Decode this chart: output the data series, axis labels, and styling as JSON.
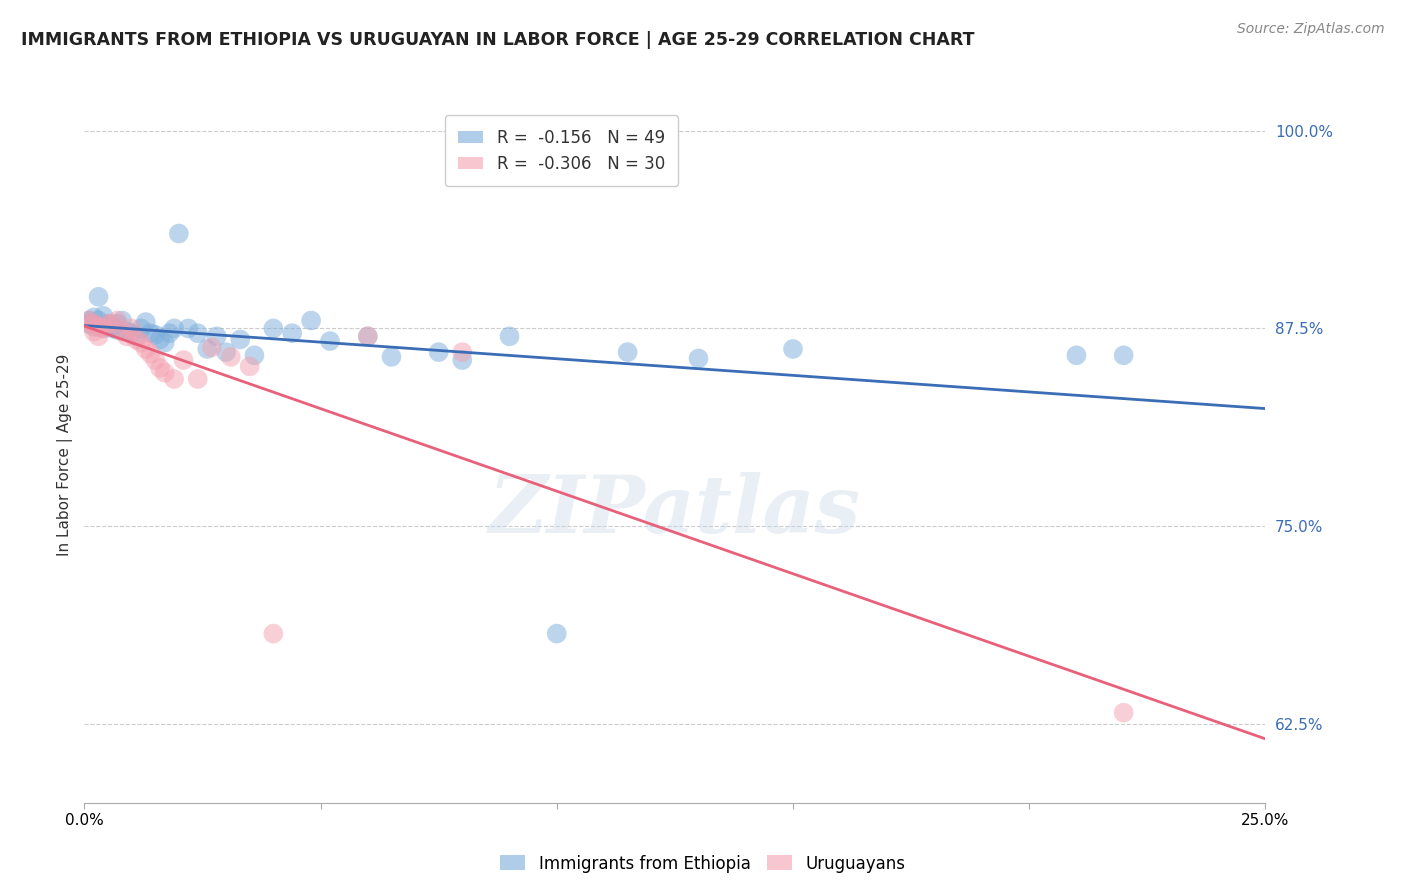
{
  "title": "IMMIGRANTS FROM ETHIOPIA VS URUGUAYAN IN LABOR FORCE | AGE 25-29 CORRELATION CHART",
  "source": "Source: ZipAtlas.com",
  "ylabel": "In Labor Force | Age 25-29",
  "xlim": [
    0.0,
    0.25
  ],
  "ylim": [
    0.575,
    1.015
  ],
  "xticks": [
    0.0,
    0.05,
    0.1,
    0.15,
    0.2,
    0.25
  ],
  "xticklabels": [
    "0.0%",
    "",
    "",
    "",
    "",
    "25.0%"
  ],
  "yticks_right": [
    0.625,
    0.75,
    0.875,
    1.0
  ],
  "ytick_labels_right": [
    "62.5%",
    "75.0%",
    "87.5%",
    "100.0%"
  ],
  "blue_R": "-0.156",
  "blue_N": "49",
  "pink_R": "-0.306",
  "pink_N": "30",
  "blue_color": "#7aaddb",
  "pink_color": "#f4a0b0",
  "blue_line_color": "#3a6db5",
  "pink_line_color": "#e8607a",
  "watermark": "ZIPatlas",
  "blue_scatter_x": [
    0.001,
    0.001,
    0.002,
    0.002,
    0.003,
    0.003,
    0.004,
    0.004,
    0.005,
    0.005,
    0.006,
    0.006,
    0.007,
    0.007,
    0.008,
    0.009,
    0.01,
    0.011,
    0.012,
    0.013,
    0.014,
    0.015,
    0.016,
    0.017,
    0.018,
    0.019,
    0.02,
    0.022,
    0.024,
    0.026,
    0.028,
    0.03,
    0.033,
    0.036,
    0.04,
    0.044,
    0.048,
    0.052,
    0.06,
    0.065,
    0.075,
    0.08,
    0.09,
    0.1,
    0.115,
    0.13,
    0.15,
    0.21,
    0.22
  ],
  "blue_scatter_y": [
    0.88,
    0.878,
    0.882,
    0.876,
    0.88,
    0.895,
    0.875,
    0.883,
    0.876,
    0.878,
    0.877,
    0.875,
    0.874,
    0.878,
    0.88,
    0.873,
    0.872,
    0.87,
    0.875,
    0.879,
    0.872,
    0.871,
    0.868,
    0.866,
    0.872,
    0.875,
    0.935,
    0.875,
    0.872,
    0.862,
    0.87,
    0.86,
    0.868,
    0.858,
    0.875,
    0.872,
    0.88,
    0.867,
    0.87,
    0.857,
    0.86,
    0.855,
    0.87,
    0.682,
    0.86,
    0.856,
    0.862,
    0.858,
    0.858
  ],
  "pink_scatter_x": [
    0.001,
    0.001,
    0.002,
    0.002,
    0.003,
    0.003,
    0.004,
    0.005,
    0.006,
    0.007,
    0.008,
    0.009,
    0.01,
    0.011,
    0.012,
    0.013,
    0.014,
    0.015,
    0.016,
    0.017,
    0.019,
    0.021,
    0.024,
    0.027,
    0.031,
    0.035,
    0.04,
    0.06,
    0.08,
    0.22
  ],
  "pink_scatter_y": [
    0.88,
    0.878,
    0.878,
    0.873,
    0.87,
    0.876,
    0.875,
    0.878,
    0.878,
    0.88,
    0.873,
    0.87,
    0.875,
    0.868,
    0.866,
    0.862,
    0.859,
    0.855,
    0.85,
    0.847,
    0.843,
    0.855,
    0.843,
    0.863,
    0.857,
    0.851,
    0.682,
    0.87,
    0.86,
    0.632
  ],
  "title_fontsize": 12.5,
  "axis_label_fontsize": 11,
  "tick_fontsize": 11,
  "legend_fontsize": 12,
  "source_fontsize": 10
}
